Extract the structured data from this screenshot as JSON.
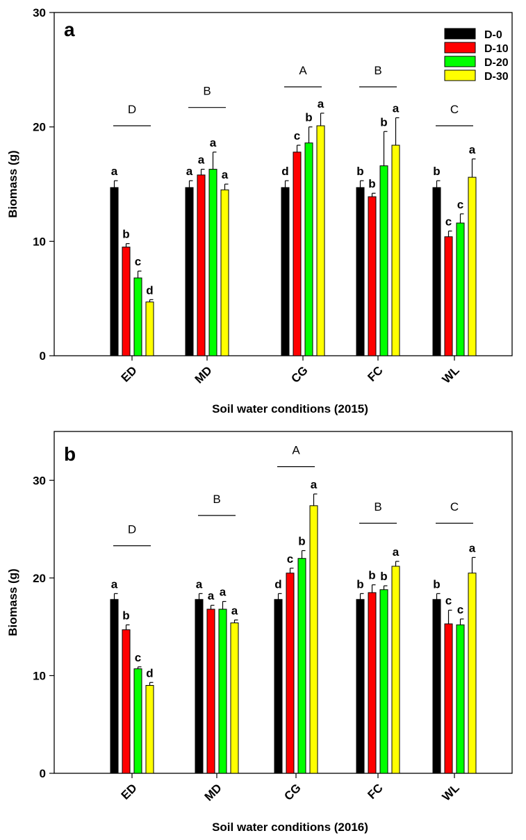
{
  "chart_data": [
    {
      "type": "bar",
      "panel": "a",
      "categories": [
        "ED",
        "MD",
        "CG",
        "FC",
        "WL"
      ],
      "series": [
        {
          "name": "D-0",
          "color": "#000000",
          "values": [
            14.7,
            14.7,
            14.7,
            14.7,
            14.7
          ],
          "errors": [
            0.6,
            0.6,
            0.6,
            0.6,
            0.6
          ],
          "letters": [
            "a",
            "a",
            "d",
            "b",
            "b"
          ]
        },
        {
          "name": "D-10",
          "color": "#ff0000",
          "values": [
            9.5,
            15.8,
            17.8,
            13.9,
            10.4
          ],
          "errors": [
            0.3,
            0.5,
            0.6,
            0.3,
            0.5
          ],
          "letters": [
            "b",
            "a",
            "c",
            "b",
            "c"
          ]
        },
        {
          "name": "D-20",
          "color": "#00ff00",
          "values": [
            6.8,
            16.3,
            18.6,
            16.6,
            11.6
          ],
          "errors": [
            0.6,
            1.5,
            1.4,
            3.0,
            0.8
          ],
          "letters": [
            "c",
            "a",
            "b",
            "b",
            "c"
          ]
        },
        {
          "name": "D-30",
          "color": "#ffff00",
          "values": [
            4.7,
            14.5,
            20.1,
            18.4,
            15.6
          ],
          "errors": [
            0.2,
            0.5,
            1.1,
            2.4,
            1.6
          ],
          "letters": [
            "d",
            "a",
            "a",
            "a",
            "a"
          ]
        }
      ],
      "group_letters": [
        "D",
        "B",
        "A",
        "B",
        "C"
      ],
      "group_letter_levels": [
        20.1,
        21.7,
        23.5,
        23.5,
        20.1
      ],
      "xlabel": "Soil water conditions (2015)",
      "ylabel": "Biomass (g)",
      "ylim": [
        0,
        30
      ],
      "yticks": [
        0,
        10,
        20,
        30
      ],
      "legend_position": "top-right",
      "grid": false
    },
    {
      "type": "bar",
      "panel": "b",
      "categories": [
        "ED",
        "MD",
        "CG",
        "FC",
        "WL"
      ],
      "series": [
        {
          "name": "D-0",
          "color": "#000000",
          "values": [
            17.8,
            17.8,
            17.8,
            17.8,
            17.8
          ],
          "errors": [
            0.6,
            0.6,
            0.6,
            0.6,
            0.6
          ],
          "letters": [
            "a",
            "a",
            "d",
            "b",
            "b"
          ]
        },
        {
          "name": "D-10",
          "color": "#ff0000",
          "values": [
            14.7,
            16.8,
            20.5,
            18.5,
            15.3
          ],
          "errors": [
            0.5,
            0.4,
            0.5,
            0.8,
            1.4
          ],
          "letters": [
            "b",
            "a",
            "c",
            "b",
            "c"
          ]
        },
        {
          "name": "D-20",
          "color": "#00ff00",
          "values": [
            10.7,
            16.8,
            22.0,
            18.8,
            15.2
          ],
          "errors": [
            0.2,
            0.8,
            0.8,
            0.4,
            0.6
          ],
          "letters": [
            "c",
            "a",
            "b",
            "b",
            "c"
          ]
        },
        {
          "name": "D-30",
          "color": "#ffff00",
          "values": [
            9.0,
            15.4,
            27.4,
            21.2,
            20.5
          ],
          "errors": [
            0.3,
            0.3,
            1.2,
            0.5,
            1.6
          ],
          "letters": [
            "d",
            "a",
            "a",
            "a",
            "a"
          ]
        }
      ],
      "group_letters": [
        "D",
        "B",
        "A",
        "B",
        "C"
      ],
      "group_letter_levels": [
        23.3,
        26.4,
        31.4,
        25.6,
        25.6
      ],
      "xlabel": "Soil water conditions (2016)",
      "ylabel": "Biomass (g)",
      "ylim": [
        0,
        35
      ],
      "yticks": [
        0,
        10,
        20,
        30
      ],
      "grid": false
    }
  ]
}
